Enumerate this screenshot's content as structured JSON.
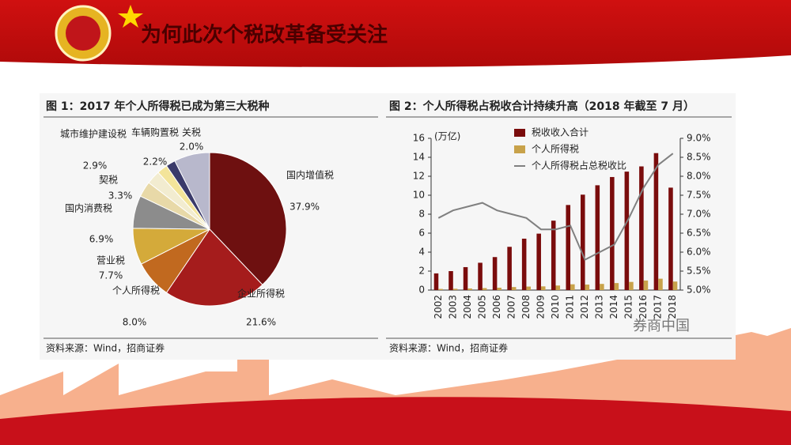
{
  "header": {
    "title": "为何此次个税改革备受关注"
  },
  "watermark": "券商中国",
  "chart_data": [
    {
      "type": "pie",
      "title": "图 1：2017 年个人所得税已成为第三大税种",
      "source": "资料来源：Wind，招商证券",
      "categories": [
        "国内增值税",
        "企业所得税",
        "个人所得税",
        "营业税",
        "国内消费税",
        "契税",
        "城市维护建设税",
        "车辆购置税",
        "关税",
        null
      ],
      "values": [
        37.9,
        21.6,
        8.0,
        7.7,
        6.9,
        3.3,
        2.9,
        2.2,
        2.0,
        7.5
      ],
      "value_labels": [
        "37.9%",
        "21.6%",
        "8.0%",
        "7.7%",
        "6.9%",
        "3.3%",
        "2.9%",
        "2.2%",
        "2.0%",
        null
      ],
      "colors": [
        "#6e1010",
        "#a51c1c",
        "#c1691f",
        "#d4aa3a",
        "#8c8c8c",
        "#e8d9a8",
        "#f2ecd0",
        "#f3e49a",
        "#3a3a6a",
        "#b8b8cc"
      ]
    },
    {
      "type": "bar-line",
      "title": "图 2：个人所得税占税收合计持续升高（2018 年截至 7 月）",
      "source": "资料来源：Wind，招商证券",
      "y_label": "(万亿)",
      "categories": [
        "2002",
        "2003",
        "2004",
        "2005",
        "2006",
        "2007",
        "2008",
        "2009",
        "2010",
        "2011",
        "2012",
        "2013",
        "2014",
        "2015",
        "2016",
        "2017",
        "2018"
      ],
      "series": [
        {
          "name": "税收收入合计",
          "type": "bar",
          "color": "#7a0c0c",
          "values": [
            1.76,
            2.0,
            2.42,
            2.88,
            3.48,
            4.56,
            5.42,
            5.95,
            7.32,
            8.97,
            10.06,
            11.05,
            11.92,
            12.49,
            13.04,
            14.44,
            10.8
          ]
        },
        {
          "name": "个人所得税",
          "type": "bar",
          "color": "#c8a24a",
          "values": [
            0.12,
            0.14,
            0.17,
            0.21,
            0.25,
            0.32,
            0.37,
            0.39,
            0.48,
            0.61,
            0.58,
            0.65,
            0.74,
            0.86,
            1.01,
            1.2,
            0.9
          ]
        },
        {
          "name": "个人所得税占总税收比",
          "type": "line",
          "axis": "y2",
          "color": "#808080",
          "values": [
            6.9,
            7.1,
            7.2,
            7.3,
            7.1,
            7.0,
            6.9,
            6.6,
            6.6,
            6.7,
            5.8,
            6.0,
            6.2,
            6.9,
            7.7,
            8.3,
            8.6
          ]
        }
      ],
      "ylim": [
        0,
        16
      ],
      "yticks": [
        0,
        2,
        4,
        6,
        8,
        10,
        12,
        14,
        16
      ],
      "y2lim": [
        5,
        9
      ],
      "y2ticks": [
        {
          "value": 5,
          "label": "5.0%"
        },
        {
          "value": 5.5,
          "label": "5.5%"
        },
        {
          "value": 6,
          "label": "6.0%"
        },
        {
          "value": 6.5,
          "label": "6.5%"
        },
        {
          "value": 7,
          "label": "7.0%"
        },
        {
          "value": 7.5,
          "label": "7.5%"
        },
        {
          "value": 8,
          "label": "8.0%"
        },
        {
          "value": 8.5,
          "label": "8.5%"
        },
        {
          "value": 9,
          "label": "9.0%"
        }
      ]
    }
  ]
}
